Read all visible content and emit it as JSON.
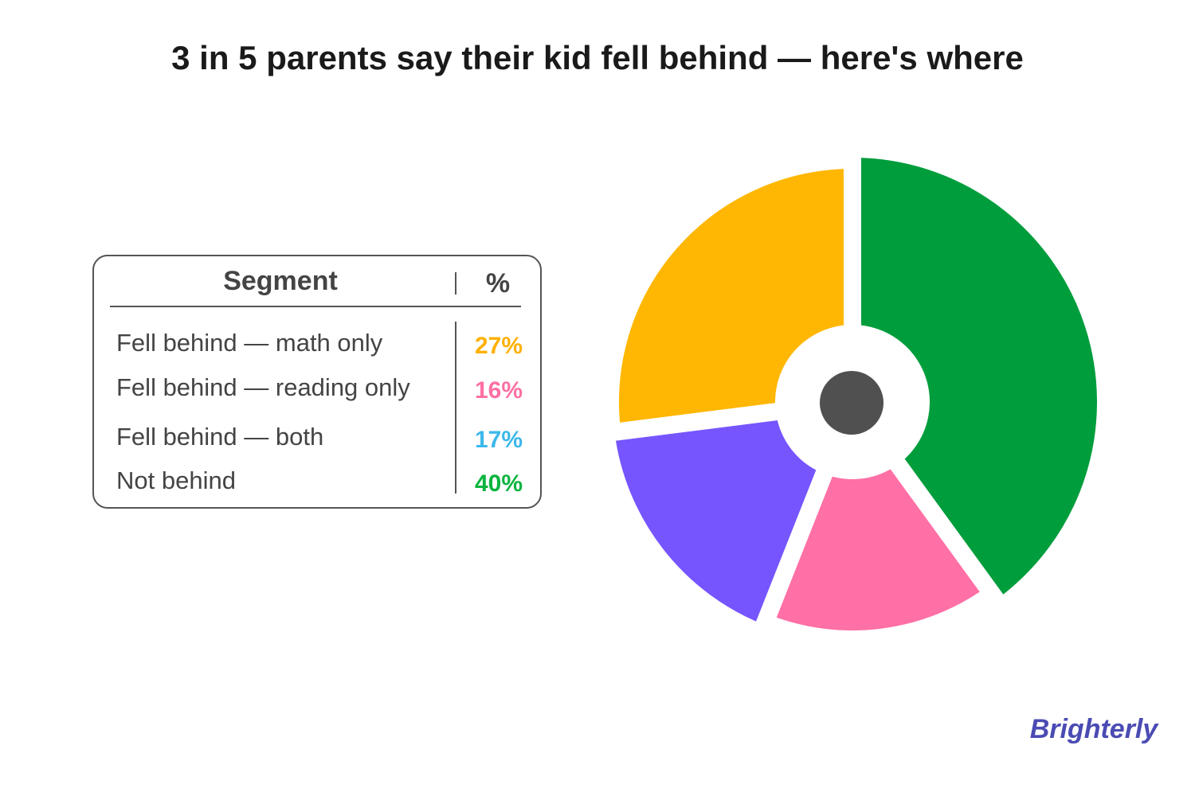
{
  "chart_data": {
    "type": "pie",
    "title": "3 in 5 parents say their kid fell behind — here's where",
    "legend_headers": [
      "Segment",
      "%"
    ],
    "categories": [
      "Fell behind — math only",
      "Fell behind — reading only",
      "Fell behind — both",
      "Not behind"
    ],
    "values": [
      27,
      16,
      17,
      40
    ],
    "value_labels": [
      "27%",
      "16%",
      "17%",
      "40%"
    ],
    "colors": [
      "#ffb703",
      "#ff70a6",
      "#7655ff",
      "#009d3c"
    ],
    "label_colors": [
      "#ffb000",
      "#ff6fa5",
      "#3cb8ea",
      "#0ab43e"
    ]
  },
  "brand": "Brighterly"
}
